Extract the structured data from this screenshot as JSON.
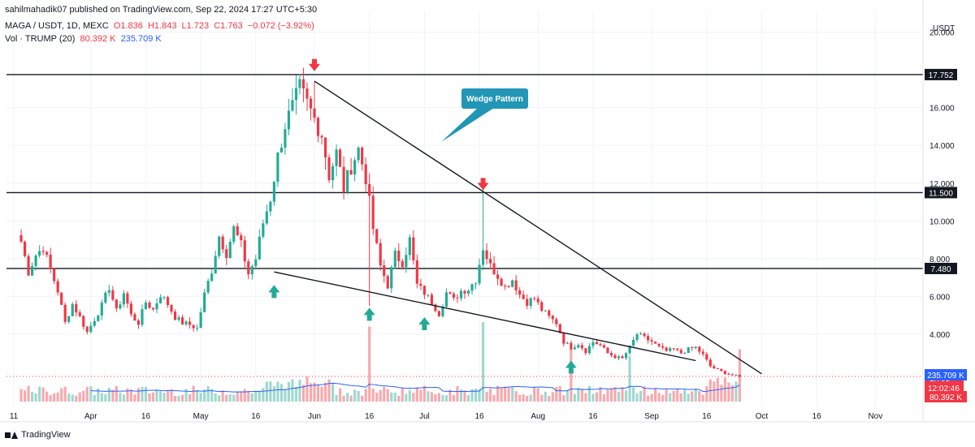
{
  "header": {
    "published": "sahilmahadik07 published on TradingView.com, Sep 22, 2024 17:27 UTC+5:30",
    "symbol": "MAGA / USDT, 1D, MEXC",
    "open": "O1.836",
    "high": "H1.843",
    "low": "L1.723",
    "close": "C1.763",
    "change": "−0.072 (−3.92%)",
    "vol_label": "Vol · TRUMP (20)",
    "vol_value": "80.392 K",
    "vol_ma_value": "235.709 K"
  },
  "footer": {
    "brand": "TradingView"
  },
  "colors": {
    "up": "#22ab94",
    "down": "#f23645",
    "up_vol": "#9fd8cf",
    "down_vol": "#f7a9ae",
    "ma": "#2962ff",
    "current": "#f23645"
  },
  "chart_data": {
    "type": "candlestick",
    "currency": "USDT",
    "y_ticks": [
      "20.000",
      "16.000",
      "14.000",
      "12.000",
      "10.000",
      "8.000",
      "6.000",
      "4.000"
    ],
    "ylim": [
      0,
      21.1
    ],
    "x_ticks": [
      "11",
      "Apr",
      "16",
      "May",
      "16",
      "Jun",
      "16",
      "Jul",
      "16",
      "Aug",
      "16",
      "Sep",
      "16",
      "Oct",
      "16",
      "Nov"
    ],
    "x_tick_days": [
      -8,
      13,
      28,
      43,
      58,
      74,
      89,
      104,
      119,
      135,
      150,
      166,
      181,
      196,
      211,
      227
    ],
    "x_domain": [
      -10,
      240
    ],
    "horizontal_levels": [
      "17.752",
      "11.500",
      "7.480"
    ],
    "current_price": "1.763",
    "countdown": "12:02:46",
    "volume_ma_label": "235.709 K",
    "volume_label": "80.392 K",
    "annotation": "Wedge Pattern",
    "trendlines": [
      {
        "from": [
          74,
          17.4
        ],
        "to": [
          196,
          1.9
        ]
      },
      {
        "from": [
          63,
          7.3
        ],
        "to": [
          178,
          2.6
        ]
      }
    ],
    "down_arrows": [
      {
        "day": 74,
        "price": 17.8
      },
      {
        "day": 120,
        "price": 11.5
      }
    ],
    "up_arrows": [
      {
        "day": 63,
        "price": 6.6
      },
      {
        "day": 89,
        "price": 5.4
      },
      {
        "day": 104,
        "price": 4.9
      },
      {
        "day": 144,
        "price": 2.6
      }
    ],
    "anchors": [
      {
        "d": -6,
        "c": 8.9
      },
      {
        "d": -4,
        "c": 7.3
      },
      {
        "d": -2,
        "c": 8.2
      },
      {
        "d": 0,
        "c": 8.6
      },
      {
        "d": 2,
        "c": 7.4
      },
      {
        "d": 4,
        "c": 6.3
      },
      {
        "d": 6,
        "c": 4.6
      },
      {
        "d": 8,
        "c": 5.6
      },
      {
        "d": 10,
        "c": 4.9
      },
      {
        "d": 12,
        "c": 4.1
      },
      {
        "d": 14,
        "c": 4.8
      },
      {
        "d": 16,
        "c": 5.5
      },
      {
        "d": 18,
        "c": 6.5
      },
      {
        "d": 20,
        "c": 5.2
      },
      {
        "d": 22,
        "c": 6.2
      },
      {
        "d": 24,
        "c": 5.0
      },
      {
        "d": 26,
        "c": 4.6
      },
      {
        "d": 28,
        "c": 5.7
      },
      {
        "d": 30,
        "c": 5.3
      },
      {
        "d": 32,
        "c": 6.1
      },
      {
        "d": 34,
        "c": 5.6
      },
      {
        "d": 36,
        "c": 4.9
      },
      {
        "d": 38,
        "c": 4.6
      },
      {
        "d": 40,
        "c": 4.5
      },
      {
        "d": 42,
        "c": 4.3
      },
      {
        "d": 44,
        "c": 6.1
      },
      {
        "d": 46,
        "c": 7.4
      },
      {
        "d": 48,
        "c": 9.2
      },
      {
        "d": 50,
        "c": 8.3
      },
      {
        "d": 52,
        "c": 9.6
      },
      {
        "d": 54,
        "c": 8.7
      },
      {
        "d": 56,
        "c": 7.2
      },
      {
        "d": 58,
        "c": 8.0
      },
      {
        "d": 60,
        "c": 9.9
      },
      {
        "d": 62,
        "c": 11.2
      },
      {
        "d": 64,
        "c": 13.4
      },
      {
        "d": 66,
        "c": 15.1
      },
      {
        "d": 68,
        "c": 16.0
      },
      {
        "d": 70,
        "c": 17.0
      },
      {
        "d": 72,
        "c": 16.2
      },
      {
        "d": 74,
        "c": 15.4
      },
      {
        "d": 76,
        "c": 14.6
      },
      {
        "d": 78,
        "c": 12.4
      },
      {
        "d": 80,
        "c": 13.6
      },
      {
        "d": 82,
        "c": 11.7
      },
      {
        "d": 84,
        "c": 12.9
      },
      {
        "d": 86,
        "c": 13.8
      },
      {
        "d": 88,
        "c": 12.3
      },
      {
        "d": 90,
        "c": 9.6
      },
      {
        "d": 92,
        "c": 7.6
      },
      {
        "d": 94,
        "c": 6.6
      },
      {
        "d": 96,
        "c": 8.2
      },
      {
        "d": 98,
        "c": 7.8
      },
      {
        "d": 100,
        "c": 9.0
      },
      {
        "d": 102,
        "c": 6.6
      },
      {
        "d": 104,
        "c": 6.2
      },
      {
        "d": 106,
        "c": 5.7
      },
      {
        "d": 108,
        "c": 5.1
      },
      {
        "d": 110,
        "c": 6.2
      },
      {
        "d": 112,
        "c": 5.8
      },
      {
        "d": 114,
        "c": 6.3
      },
      {
        "d": 116,
        "c": 6.4
      },
      {
        "d": 118,
        "c": 6.9
      },
      {
        "d": 120,
        "c": 8.6
      },
      {
        "d": 122,
        "c": 7.6
      },
      {
        "d": 124,
        "c": 7.1
      },
      {
        "d": 126,
        "c": 6.5
      },
      {
        "d": 128,
        "c": 6.9
      },
      {
        "d": 130,
        "c": 6.1
      },
      {
        "d": 132,
        "c": 5.7
      },
      {
        "d": 134,
        "c": 5.9
      },
      {
        "d": 136,
        "c": 5.3
      },
      {
        "d": 138,
        "c": 4.9
      },
      {
        "d": 140,
        "c": 4.6
      },
      {
        "d": 142,
        "c": 3.6
      },
      {
        "d": 144,
        "c": 3.3
      },
      {
        "d": 146,
        "c": 3.5
      },
      {
        "d": 148,
        "c": 3.1
      },
      {
        "d": 150,
        "c": 3.6
      },
      {
        "d": 152,
        "c": 3.4
      },
      {
        "d": 154,
        "c": 3.0
      },
      {
        "d": 156,
        "c": 2.8
      },
      {
        "d": 158,
        "c": 2.7
      },
      {
        "d": 160,
        "c": 3.3
      },
      {
        "d": 162,
        "c": 4.0
      },
      {
        "d": 164,
        "c": 3.8
      },
      {
        "d": 166,
        "c": 3.6
      },
      {
        "d": 168,
        "c": 3.3
      },
      {
        "d": 170,
        "c": 3.1
      },
      {
        "d": 172,
        "c": 3.2
      },
      {
        "d": 174,
        "c": 3.0
      },
      {
        "d": 176,
        "c": 3.2
      },
      {
        "d": 178,
        "c": 3.3
      },
      {
        "d": 180,
        "c": 2.9
      },
      {
        "d": 182,
        "c": 2.3
      },
      {
        "d": 184,
        "c": 2.1
      },
      {
        "d": 186,
        "c": 1.95
      },
      {
        "d": 188,
        "c": 1.836
      },
      {
        "d": 190,
        "c": 1.763
      }
    ],
    "volume_spikes": [
      {
        "d": 89,
        "v": 3.3
      },
      {
        "d": 120,
        "v": 3.5
      },
      {
        "d": 144,
        "v": 2.3
      },
      {
        "d": 160,
        "v": 2.0
      },
      {
        "d": 190,
        "v": 2.3
      },
      {
        "d": 72,
        "v": 1.1
      }
    ]
  }
}
